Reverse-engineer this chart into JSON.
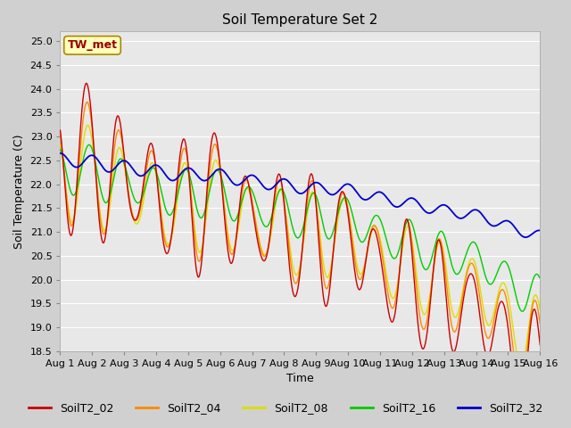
{
  "title": "Soil Temperature Set 2",
  "xlabel": "Time",
  "ylabel": "Soil Temperature (C)",
  "ylim": [
    18.5,
    25.2
  ],
  "xlim": [
    0,
    360
  ],
  "x_tick_labels": [
    "Aug 1",
    "Aug 2",
    "Aug 3",
    "Aug 4",
    "Aug 5",
    "Aug 6",
    "Aug 7",
    "Aug 8",
    "Aug 9",
    "Aug 10",
    "Aug 11",
    "Aug 12",
    "Aug 13",
    "Aug 14",
    "Aug 15",
    "Aug 16"
  ],
  "x_tick_positions": [
    0,
    24,
    48,
    72,
    96,
    120,
    144,
    168,
    192,
    216,
    240,
    264,
    288,
    312,
    336,
    360
  ],
  "y_ticks": [
    18.5,
    19.0,
    19.5,
    20.0,
    20.5,
    21.0,
    21.5,
    22.0,
    22.5,
    23.0,
    23.5,
    24.0,
    24.5,
    25.0
  ],
  "series_colors": [
    "#cc0000",
    "#ff8800",
    "#dddd00",
    "#00cc00",
    "#0000cc"
  ],
  "series_labels": [
    "SoilT2_02",
    "SoilT2_04",
    "SoilT2_08",
    "SoilT2_16",
    "SoilT2_32"
  ],
  "annotation_text": "TW_met",
  "annotation_color": "#990000",
  "annotation_bg": "#ffffbb",
  "annotation_border": "#aa8800",
  "fig_bg_color": "#d0d0d0",
  "plot_bg_color": "#e8e8e8",
  "grid_color": "#ffffff",
  "title_fontsize": 11,
  "axis_fontsize": 9,
  "tick_fontsize": 8,
  "legend_fontsize": 9
}
